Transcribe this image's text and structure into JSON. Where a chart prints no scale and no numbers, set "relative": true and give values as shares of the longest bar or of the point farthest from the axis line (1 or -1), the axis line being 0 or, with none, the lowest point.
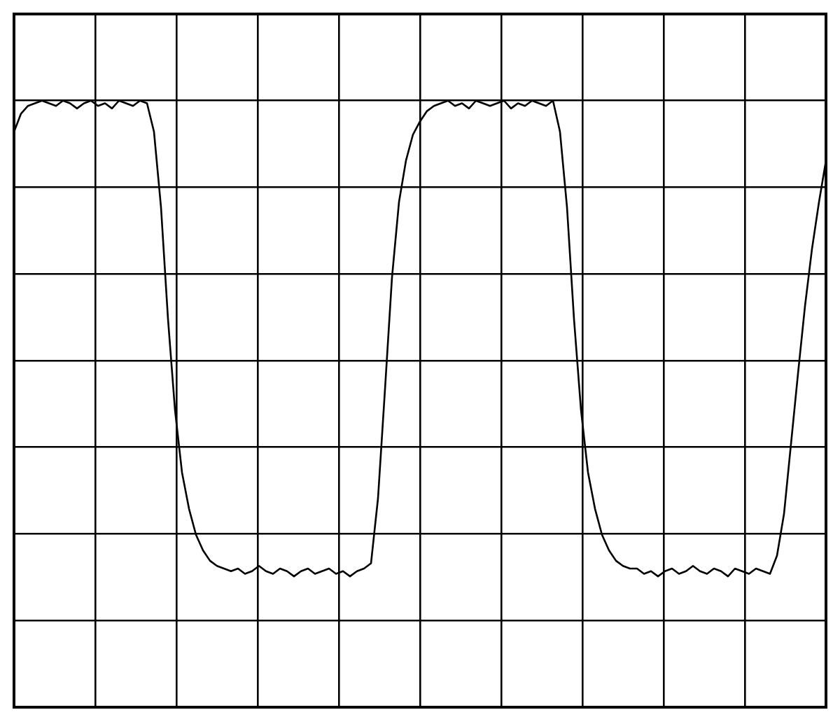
{
  "chart_data": {
    "type": "line",
    "relative": true,
    "grid": true,
    "legend": false,
    "marker": "none",
    "line_style": "solid",
    "categories": [
      null,
      null,
      null,
      null,
      null,
      null,
      null,
      null,
      null,
      null,
      null,
      null,
      null,
      null,
      null,
      null,
      null,
      null,
      null,
      null,
      null,
      null,
      null,
      null,
      null,
      null,
      null,
      null,
      null,
      null,
      null,
      null,
      null,
      null,
      null,
      null,
      null,
      null,
      null,
      null,
      null,
      null,
      null,
      null,
      null,
      null,
      null,
      null,
      null,
      null,
      null,
      null,
      null,
      null,
      null,
      null,
      null,
      null,
      null,
      null,
      null,
      null,
      null,
      null,
      null,
      null,
      null,
      null,
      null,
      null,
      null,
      null,
      null,
      null,
      null,
      null,
      null,
      null,
      null,
      null,
      null,
      null,
      null,
      null,
      null,
      null,
      null,
      null,
      null,
      null,
      null,
      null,
      null,
      null,
      null,
      null,
      null,
      null,
      null,
      null,
      null,
      null,
      null,
      null,
      null,
      null,
      null,
      null,
      null,
      null,
      null,
      null,
      null,
      null,
      null,
      null,
      null
    ],
    "series": [
      {
        "color": "#000000",
        "values": [
          0.88,
          0.95,
          0.98,
          0.99,
          1,
          0.99,
          0.98,
          1,
          0.99,
          0.97,
          0.99,
          1,
          0.98,
          0.99,
          0.97,
          1,
          0.99,
          0.98,
          1,
          0.99,
          0.88,
          0.59,
          0.16,
          -0.19,
          -0.43,
          -0.57,
          -0.67,
          -0.73,
          -0.77,
          -0.79,
          -0.8,
          -0.81,
          -0.8,
          -0.82,
          -0.81,
          -0.79,
          -0.81,
          -0.82,
          -0.8,
          -0.81,
          -0.83,
          -0.81,
          -0.8,
          -0.82,
          -0.81,
          -0.8,
          -0.82,
          -0.81,
          -0.83,
          -0.81,
          -0.8,
          -0.78,
          -0.53,
          -0.11,
          0.32,
          0.61,
          0.77,
          0.87,
          0.92,
          0.96,
          0.98,
          0.99,
          1,
          0.98,
          0.99,
          0.97,
          1,
          0.99,
          0.98,
          0.99,
          1,
          0.97,
          0.99,
          0.98,
          1,
          0.99,
          0.98,
          1,
          0.88,
          0.59,
          0.16,
          -0.19,
          -0.43,
          -0.57,
          -0.67,
          -0.73,
          -0.77,
          -0.79,
          -0.8,
          -0.8,
          -0.82,
          -0.81,
          -0.83,
          -0.81,
          -0.8,
          -0.82,
          -0.81,
          -0.79,
          -0.81,
          -0.82,
          -0.8,
          -0.81,
          -0.83,
          -0.8,
          -0.81,
          -0.82,
          -0.8,
          -0.81,
          -0.82,
          -0.75,
          -0.59,
          -0.32,
          -0.05,
          0.21,
          0.43,
          0.61,
          0.77
        ]
      }
    ]
  }
}
